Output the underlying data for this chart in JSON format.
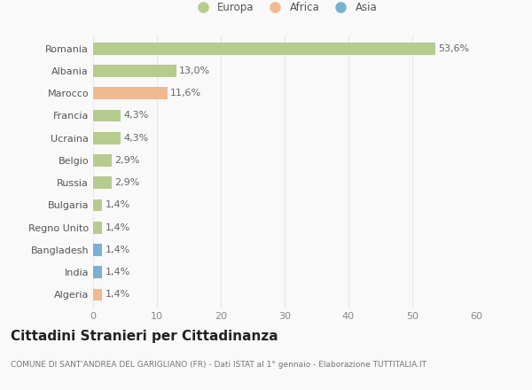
{
  "categories": [
    "Romania",
    "Albania",
    "Marocco",
    "Francia",
    "Ucraina",
    "Belgio",
    "Russia",
    "Bulgaria",
    "Regno Unito",
    "Bangladesh",
    "India",
    "Algeria"
  ],
  "values": [
    53.6,
    13.0,
    11.6,
    4.3,
    4.3,
    2.9,
    2.9,
    1.4,
    1.4,
    1.4,
    1.4,
    1.4
  ],
  "labels": [
    "53,6%",
    "13,0%",
    "11,6%",
    "4,3%",
    "4,3%",
    "2,9%",
    "2,9%",
    "1,4%",
    "1,4%",
    "1,4%",
    "1,4%",
    "1,4%"
  ],
  "continents": [
    "Europa",
    "Europa",
    "Africa",
    "Europa",
    "Europa",
    "Europa",
    "Europa",
    "Europa",
    "Europa",
    "Asia",
    "Asia",
    "Africa"
  ],
  "continent_colors": {
    "Europa": "#b5cc8e",
    "Africa": "#f0b990",
    "Asia": "#7bafd4"
  },
  "xlim": [
    0,
    60
  ],
  "xticks": [
    0,
    10,
    20,
    30,
    40,
    50,
    60
  ],
  "title": "Cittadini Stranieri per Cittadinanza",
  "subtitle": "COMUNE DI SANT'ANDREA DEL GARIGLIANO (FR) - Dati ISTAT al 1° gennaio - Elaborazione TUTTITALIA.IT",
  "background_color": "#f9f9f9",
  "grid_color": "#e8e8e8",
  "bar_height": 0.55,
  "label_fontsize": 8,
  "tick_fontsize": 8,
  "title_fontsize": 11,
  "subtitle_fontsize": 6.5,
  "legend_order": [
    "Europa",
    "Africa",
    "Asia"
  ]
}
